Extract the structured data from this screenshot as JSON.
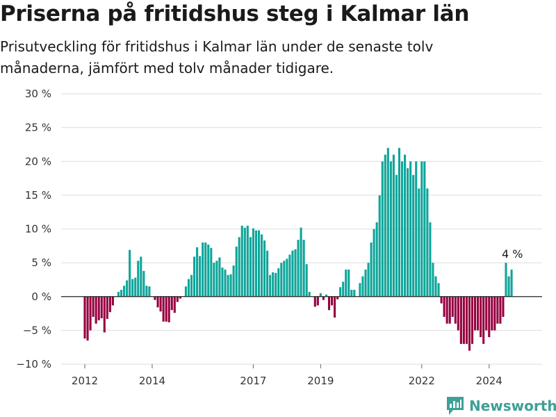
{
  "title": "Priserna på fritidshus steg i Kalmar län",
  "subtitle": "Prisutveckling för fritidshus i Kalmar län under de senaste tolv månaderna, jämfört med tolv månader tidigare.",
  "brand": "Newsworthy",
  "colors": {
    "positive": "#0ea59a",
    "negative": "#960040",
    "grid": "#dddddd",
    "zero": "#222222"
  },
  "chart_data": {
    "type": "bar",
    "title": "Priserna på fritidshus steg i Kalmar län",
    "subtitle": "Prisutveckling för fritidshus i Kalmar län under de senaste tolv månaderna, jämfört med tolv månader tidigare.",
    "xlabel": "",
    "ylabel": "",
    "ylim": [
      -10,
      30
    ],
    "yticks": [
      30,
      25,
      20,
      15,
      10,
      5,
      0,
      -5,
      -10
    ],
    "ytick_labels": [
      "30 %",
      "25 %",
      "20 %",
      "15 %",
      "10 %",
      "5 %",
      "0 %",
      "−5 %",
      "−10 %"
    ],
    "xticks": [
      {
        "label": "2012",
        "index": 0
      },
      {
        "label": "2014",
        "index": 24
      },
      {
        "label": "2017",
        "index": 60
      },
      {
        "label": "2019",
        "index": 84
      },
      {
        "label": "2022",
        "index": 120
      },
      {
        "label": "2024",
        "index": 144
      }
    ],
    "grid": true,
    "legend": "none",
    "annotation": {
      "text": "4 %",
      "index": 155
    },
    "start": "2012-01",
    "frequency": "monthly",
    "values": [
      -6.2,
      -6.5,
      -5,
      -3,
      -4,
      -3.5,
      -3.2,
      -5.3,
      -3.3,
      -2.3,
      -1.3,
      0,
      0.7,
      1,
      1.6,
      2.4,
      6.9,
      2.6,
      2.8,
      5.3,
      5.9,
      3.8,
      1.6,
      1.5,
      0,
      -0.5,
      -1.6,
      -2.2,
      -3.7,
      -3.7,
      -3.8,
      -2,
      -2.4,
      -0.8,
      -0.3,
      0,
      1.5,
      2.6,
      3.2,
      5.9,
      7.3,
      6,
      8,
      8,
      7.7,
      7.2,
      5,
      5.3,
      5.8,
      4.3,
      4,
      3.2,
      3.3,
      4.6,
      7.4,
      8.8,
      10.5,
      10.2,
      10.5,
      8.8,
      10.1,
      9.8,
      9.8,
      9.2,
      8.3,
      6.8,
      3.2,
      3.6,
      3.5,
      4.2,
      5,
      5.3,
      5.6,
      6.2,
      6.8,
      7,
      8.4,
      10.2,
      8.4,
      4.8,
      0.7,
      0,
      -1.5,
      -1.3,
      0.5,
      -0.5,
      0.3,
      -2,
      -1.3,
      -3.1,
      -0.4,
      1.4,
      2.2,
      4,
      4,
      1,
      1,
      0,
      2,
      3,
      4,
      5,
      8,
      10,
      11,
      15,
      20,
      21,
      22,
      20,
      21,
      18,
      22,
      20,
      21,
      19,
      20,
      18,
      20,
      16,
      20,
      20,
      16,
      11,
      5,
      3,
      2,
      -1,
      -3,
      -4,
      -4,
      -3,
      -4,
      -5,
      -7,
      -7,
      -7,
      -8,
      -7,
      -5,
      -5,
      -6,
      -7,
      -5,
      -6,
      -5,
      -5,
      -4,
      -4,
      -3,
      5,
      3,
      4
    ]
  }
}
